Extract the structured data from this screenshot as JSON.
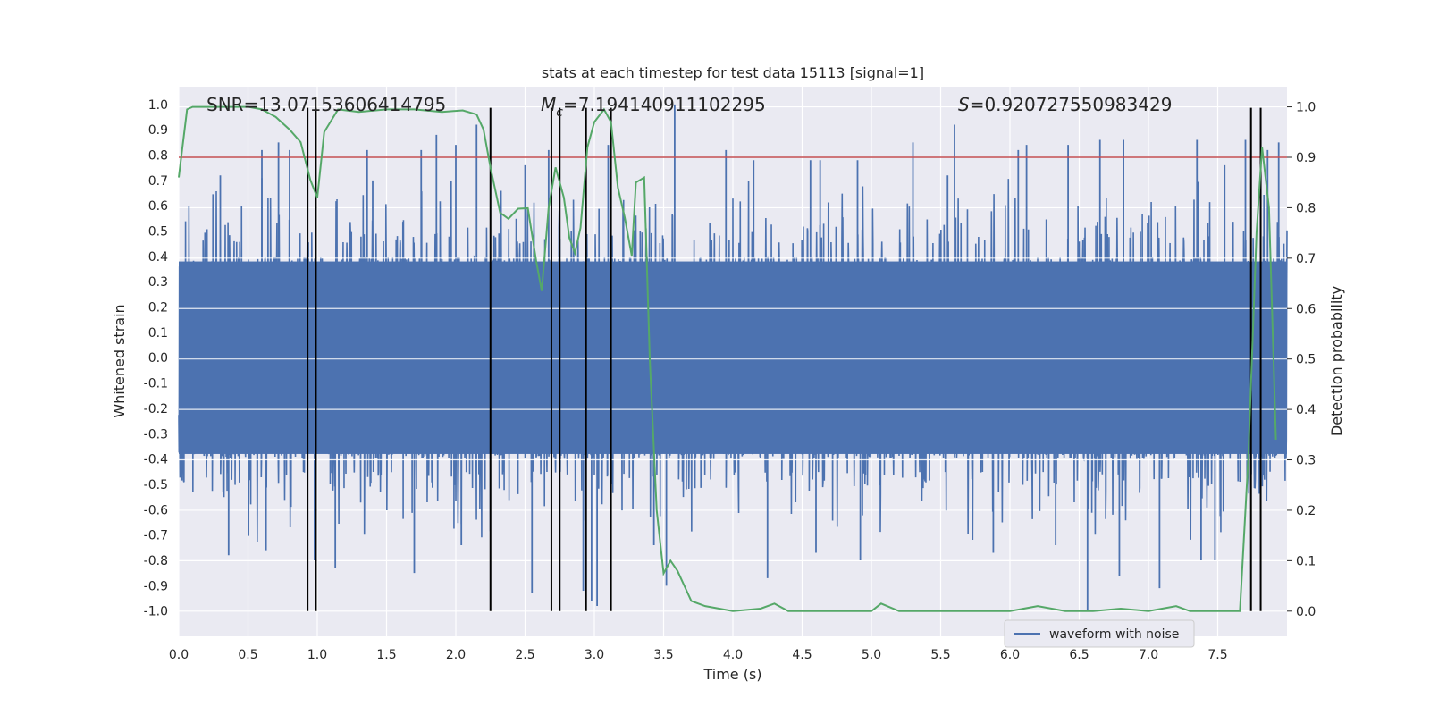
{
  "chart_data": {
    "type": "line",
    "title": "stats at each timestep for test data 15113 [signal=1]",
    "xlabel": "Time (s)",
    "ylabel_left": "Whitened strain",
    "ylabel_right": "Detection probability",
    "xlim": [
      0.0,
      8.0
    ],
    "ylim_left": [
      -1.1,
      1.07
    ],
    "ylim_right": [
      -0.05,
      1.04
    ],
    "xticks": [
      "0.0",
      "0.5",
      "1.0",
      "1.5",
      "2.0",
      "2.5",
      "3.0",
      "3.5",
      "4.0",
      "4.5",
      "5.0",
      "5.5",
      "6.0",
      "6.5",
      "7.0",
      "7.5"
    ],
    "xtick_values": [
      0.0,
      0.5,
      1.0,
      1.5,
      2.0,
      2.5,
      3.0,
      3.5,
      4.0,
      4.5,
      5.0,
      5.5,
      6.0,
      6.5,
      7.0,
      7.5
    ],
    "yticks_left": [
      "1.0",
      "0.9",
      "0.8",
      "0.7",
      "0.6",
      "0.5",
      "0.4",
      "0.3",
      "0.2",
      "0.1",
      "0.0",
      "-0.1",
      "-0.2",
      "-0.3",
      "-0.4",
      "-0.5",
      "-0.6",
      "-0.7",
      "-0.8",
      "-0.9",
      "-1.0"
    ],
    "ytick_values_left": [
      1.0,
      0.9,
      0.8,
      0.7,
      0.6,
      0.5,
      0.4,
      0.3,
      0.2,
      0.1,
      0.0,
      -0.1,
      -0.2,
      -0.3,
      -0.4,
      -0.5,
      -0.6,
      -0.7,
      -0.8,
      -0.9,
      -1.0
    ],
    "yticks_right": [
      "1.0",
      "0.9",
      "0.8",
      "0.7",
      "0.6",
      "0.5",
      "0.4",
      "0.3",
      "0.2",
      "0.1",
      "0.0"
    ],
    "ytick_values_right": [
      1.0,
      0.9,
      0.8,
      0.7,
      0.6,
      0.5,
      0.4,
      0.3,
      0.2,
      0.1,
      0.0
    ],
    "annotations": {
      "snr": "SNR=13.07153606414795",
      "mc_symbol": "M",
      "mc_sub": "c",
      "mc_value": "=7.194140911102295",
      "s_symbol": "S",
      "s_value": "=0.920727550983429"
    },
    "legend": {
      "label": "waveform with noise",
      "location": "lower-right"
    },
    "threshold": {
      "value": 0.9,
      "axis": "right",
      "color": "#c44e52"
    },
    "vertical_lines_x": [
      0.93,
      0.99,
      2.25,
      2.69,
      2.75,
      2.94,
      3.12,
      7.74,
      7.81
    ],
    "waveform": {
      "name": "waveform with noise",
      "color": "#4c72b0",
      "duration": 8.0,
      "core_amplitude": 0.4,
      "peak_max": 1.0,
      "peak_min": -1.0
    },
    "probability_series": {
      "name": "detection probability",
      "color": "#55a868",
      "x": [
        0.0,
        0.06,
        0.1,
        0.2,
        0.3,
        0.4,
        0.5,
        0.6,
        0.7,
        0.8,
        0.88,
        0.95,
        1.0,
        1.05,
        1.15,
        1.3,
        1.5,
        1.7,
        1.9,
        2.05,
        2.15,
        2.2,
        2.25,
        2.32,
        2.38,
        2.45,
        2.52,
        2.58,
        2.62,
        2.67,
        2.72,
        2.78,
        2.82,
        2.86,
        2.9,
        2.95,
        3.0,
        3.07,
        3.12,
        3.17,
        3.22,
        3.27,
        3.3,
        3.36,
        3.4,
        3.45,
        3.5,
        3.55,
        3.6,
        3.7,
        3.8,
        4.0,
        4.2,
        4.3,
        4.4,
        4.6,
        4.8,
        5.0,
        5.07,
        5.2,
        5.6,
        5.8,
        6.0,
        6.2,
        6.4,
        6.6,
        6.8,
        7.0,
        7.2,
        7.3,
        7.5,
        7.6,
        7.66,
        7.72,
        7.78,
        7.82,
        7.87,
        7.92
      ],
      "y": [
        0.86,
        0.995,
        1.0,
        1.0,
        1.0,
        1.0,
        1.0,
        0.995,
        0.98,
        0.955,
        0.93,
        0.855,
        0.82,
        0.95,
        0.995,
        0.99,
        0.995,
        0.995,
        0.99,
        0.993,
        0.985,
        0.955,
        0.88,
        0.79,
        0.778,
        0.798,
        0.799,
        0.695,
        0.635,
        0.8,
        0.88,
        0.82,
        0.74,
        0.71,
        0.76,
        0.92,
        0.97,
        0.995,
        0.97,
        0.84,
        0.78,
        0.705,
        0.85,
        0.86,
        0.5,
        0.2,
        0.075,
        0.1,
        0.08,
        0.02,
        0.01,
        0.0,
        0.005,
        0.015,
        0.0,
        0.0,
        0.0,
        0.0,
        0.015,
        0.0,
        0.0,
        0.0,
        0.0,
        0.01,
        0.0,
        0.0,
        0.005,
        0.0,
        0.01,
        0.0,
        0.0,
        0.0,
        0.0,
        0.3,
        0.75,
        0.92,
        0.8,
        0.34
      ]
    },
    "spikes": [
      [
        0.3,
        0.72
      ],
      [
        0.36,
        -0.78
      ],
      [
        0.6,
        0.82
      ],
      [
        0.63,
        -0.76
      ],
      [
        0.72,
        0.85
      ],
      [
        0.8,
        0.82
      ],
      [
        0.98,
        -0.8
      ],
      [
        1.13,
        -0.83
      ],
      [
        1.36,
        0.82
      ],
      [
        1.4,
        0.7
      ],
      [
        1.7,
        -0.85
      ],
      [
        1.75,
        0.82
      ],
      [
        1.86,
        0.88
      ],
      [
        2.0,
        0.84
      ],
      [
        2.04,
        -0.74
      ],
      [
        2.15,
        0.92
      ],
      [
        2.5,
        0.76
      ],
      [
        2.55,
        -0.93
      ],
      [
        2.67,
        0.82
      ],
      [
        2.92,
        -0.92
      ],
      [
        2.98,
        -0.96
      ],
      [
        3.02,
        -0.98
      ],
      [
        3.1,
        0.84
      ],
      [
        3.43,
        -0.74
      ],
      [
        3.52,
        -0.9
      ],
      [
        3.58,
        1.0
      ],
      [
        3.95,
        0.82
      ],
      [
        4.15,
        0.78
      ],
      [
        4.25,
        -0.87
      ],
      [
        4.56,
        0.78
      ],
      [
        4.6,
        -0.77
      ],
      [
        4.63,
        0.78
      ],
      [
        4.9,
        0.78
      ],
      [
        4.92,
        -0.8
      ],
      [
        5.3,
        0.85
      ],
      [
        5.55,
        0.72
      ],
      [
        5.6,
        0.92
      ],
      [
        5.88,
        -0.77
      ],
      [
        6.06,
        0.82
      ],
      [
        6.12,
        0.84
      ],
      [
        6.33,
        -0.74
      ],
      [
        6.42,
        0.84
      ],
      [
        6.56,
        -1.0
      ],
      [
        6.65,
        0.86
      ],
      [
        6.79,
        -0.86
      ],
      [
        6.82,
        0.86
      ],
      [
        7.08,
        -0.91
      ],
      [
        7.35,
        0.86
      ],
      [
        7.38,
        -0.8
      ],
      [
        7.48,
        -0.8
      ],
      [
        7.55,
        0.76
      ],
      [
        7.7,
        0.86
      ],
      [
        7.86,
        0.82
      ],
      [
        7.94,
        0.85
      ]
    ]
  }
}
